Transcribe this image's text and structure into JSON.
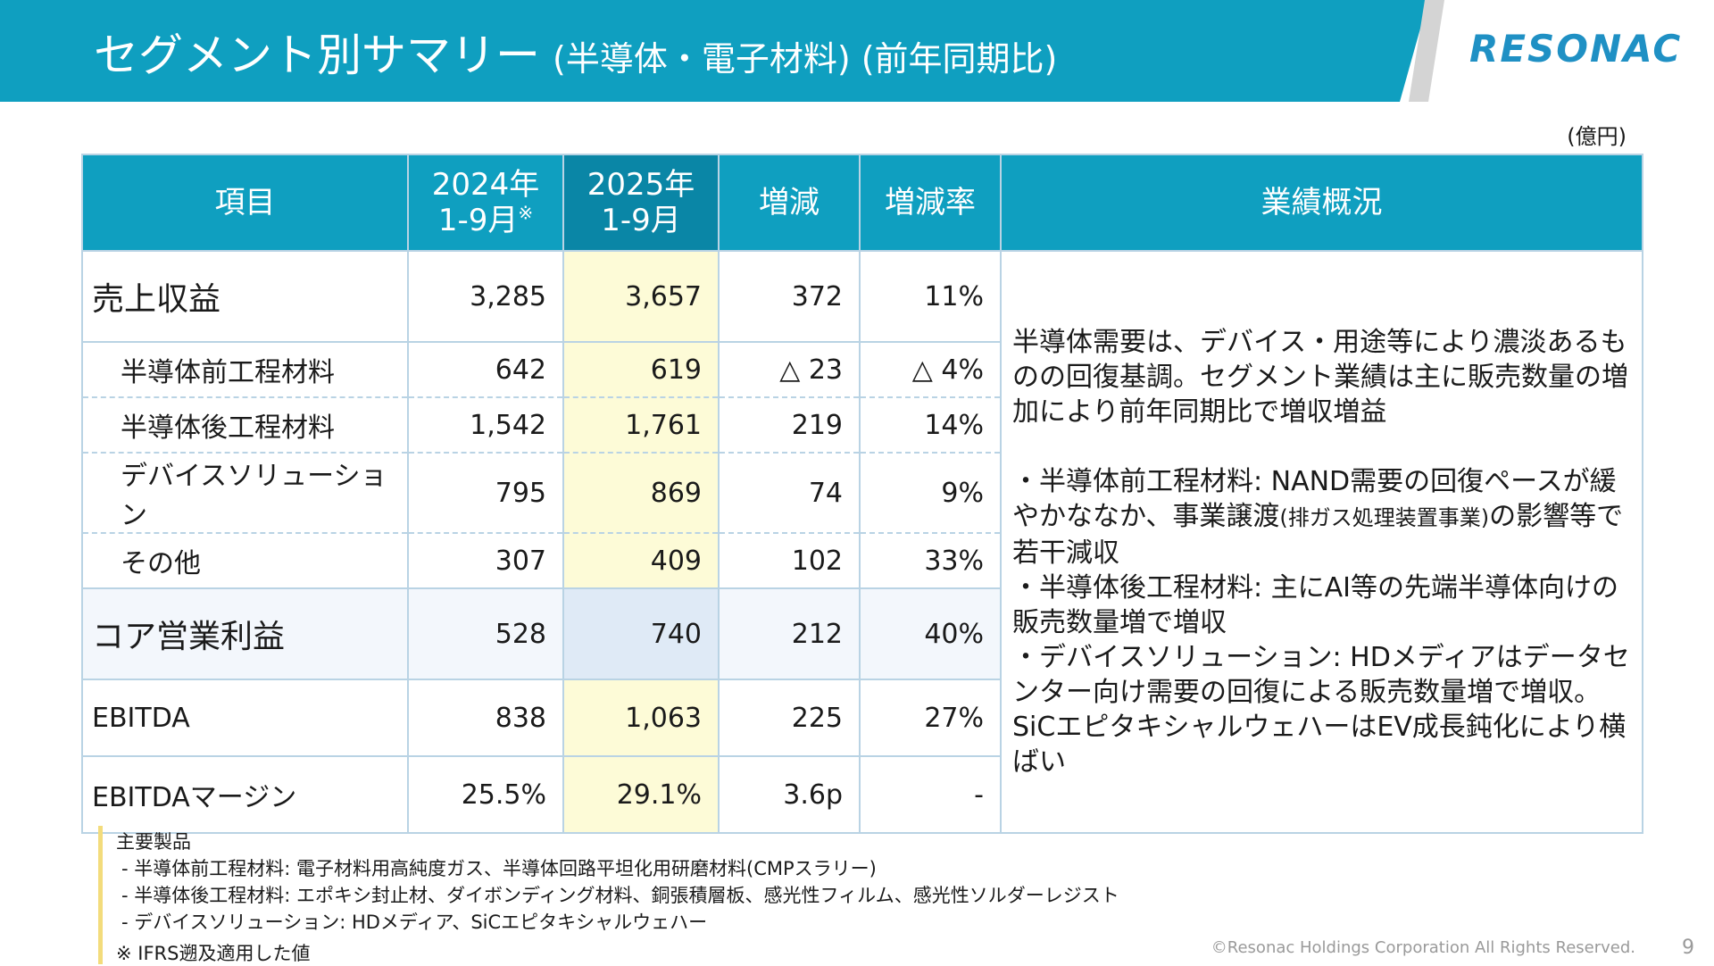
{
  "header": {
    "title_main": "セグメント別サマリー",
    "title_sub": "(半導体・電子材料) (前年同期比)",
    "logo": "RESONAC"
  },
  "unit_label": "(億円)",
  "table": {
    "headers": {
      "item": "項目",
      "prev_line1": "2024年",
      "prev_line2": "1-9月",
      "prev_mark": "※",
      "curr_line1": "2025年",
      "curr_line2": "1-9月",
      "change": "増減",
      "rate": "増減率",
      "overview": "業績概況"
    },
    "rows": [
      {
        "label": "売上収益",
        "prev": "3,285",
        "curr": "3,657",
        "change": "372",
        "rate": "11%"
      },
      {
        "label": "半導体前工程材料",
        "prev": "642",
        "curr": "619",
        "change": "△ 23",
        "rate": "△ 4%"
      },
      {
        "label": "半導体後工程材料",
        "prev": "1,542",
        "curr": "1,761",
        "change": "219",
        "rate": "14%"
      },
      {
        "label": "デバイスソリューション",
        "prev": "795",
        "curr": "869",
        "change": "74",
        "rate": "9%"
      },
      {
        "label": "その他",
        "prev": "307",
        "curr": "409",
        "change": "102",
        "rate": "33%"
      },
      {
        "label": "コア営業利益",
        "prev": "528",
        "curr": "740",
        "change": "212",
        "rate": "40%"
      },
      {
        "label": "EBITDA",
        "prev": "838",
        "curr": "1,063",
        "change": "225",
        "rate": "27%"
      },
      {
        "label": "EBITDAマージン",
        "prev": "25.5%",
        "curr": "29.1%",
        "change": "3.6p",
        "rate": "-"
      }
    ],
    "overview": {
      "para1": "半導体需要は、デバイス・用途等により濃淡あるものの回復基調。セグメント業績は主に販売数量の増加により前年同期比で増収増益",
      "b1_pre": "・半導体前工程材料: NAND需要の回復ペースが緩やかななか、事業譲渡",
      "b1_small": "(排ガス処理装置事業)",
      "b1_post": "の影響等で若干減収",
      "b2": "・半導体後工程材料: 主にAI等の先端半導体向けの販売数量増で増収",
      "b3": "・デバイスソリューション: HDメディアはデータセンター向け需要の回復による販売数量増で増収。SiCエピタキシャルウェハーはEV成長鈍化により横ばい"
    }
  },
  "notes": {
    "heading": "主要製品",
    "items": [
      "- 半導体前工程材料: 電子材料用高純度ガス、半導体回路平坦化用研磨材料(CMPスラリー)",
      "- 半導体後工程材料: エポキシ封止材、ダイボンディング材料、銅張積層板、感光性フィルム、感光性ソルダーレジスト",
      "- デバイスソリューション: HDメディア、SiCエピタキシャルウェハー"
    ],
    "footnote": "※ IFRS遡及適用した値"
  },
  "footer": {
    "copyright": "©Resonac Holdings Corporation  All Rights Reserved.",
    "page": "9"
  }
}
